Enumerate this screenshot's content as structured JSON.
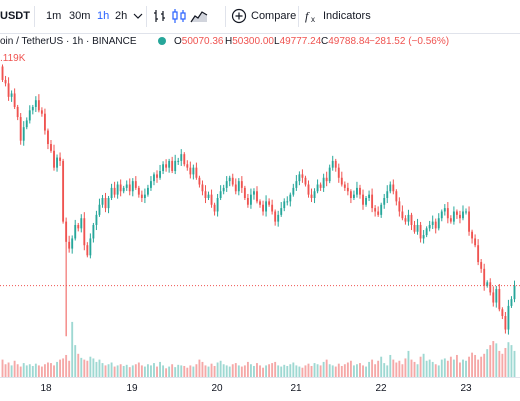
{
  "header": {
    "symbol_fragment": "USDT",
    "intervals": [
      "1m",
      "30m",
      "1h",
      "2h"
    ],
    "active_interval": "1h",
    "compare_label": "Compare",
    "indicators_label": "Indicators"
  },
  "legend": {
    "title": "oin / TetherUS · 1h · BINANCE",
    "open_label": "O",
    "open": "50070.36",
    "high_label": "H",
    "high": "50300.00",
    "low_label": "L",
    "low": "49777.24",
    "close_label": "C",
    "close": "49788.84",
    "change": "−281.52 (−0.56%)",
    "volume_fragment": ".119K"
  },
  "colors": {
    "up": "#26a69a",
    "down": "#ef5350",
    "up_volume": "#9ed8d2",
    "down_volume": "#f5a8a7",
    "accent": "#2962ff",
    "price_line": "#ef5350"
  },
  "icons": [
    "chevron-down-icon",
    "bar-style-icon",
    "candle-style-icon",
    "area-style-icon",
    "plus-circle-icon",
    "fx-icon"
  ],
  "chart_data": {
    "type": "candlestick",
    "x_tick_labels": [
      "18",
      "19",
      "20",
      "21",
      "22",
      "23"
    ],
    "last_price_line": "dotted",
    "ohlc_path": [
      53800,
      53400,
      53300,
      52900,
      53000,
      52600,
      52300,
      51600,
      52000,
      52200,
      52500,
      52600,
      52800,
      52500,
      52400,
      51900,
      51500,
      51300,
      50800,
      51100,
      51000,
      49200,
      48600,
      48400,
      48700,
      49100,
      49000,
      49300,
      48500,
      48200,
      48700,
      49100,
      49400,
      49700,
      49900,
      49600,
      49900,
      50200,
      50000,
      50300,
      50100,
      50200,
      50300,
      50100,
      50400,
      50200,
      50000,
      49900,
      50000,
      50200,
      50400,
      50600,
      50500,
      50700,
      50900,
      50800,
      51000,
      50700,
      51000,
      51000,
      51200,
      50900,
      50800,
      50600,
      50800,
      50500,
      50300,
      50100,
      49900,
      50000,
      49700,
      49500,
      49900,
      50100,
      50200,
      50400,
      50500,
      50300,
      50100,
      50400,
      50200,
      49900,
      49700,
      50000,
      50100,
      49800,
      49700,
      49500,
      49800,
      49700,
      49500,
      49200,
      49400,
      49600,
      49800,
      49800,
      50000,
      50200,
      50400,
      50600,
      50500,
      50300,
      50000,
      49900,
      50100,
      50300,
      50200,
      50500,
      50400,
      50800,
      51000,
      50800,
      50500,
      50300,
      50200,
      50100,
      49900,
      50000,
      50200,
      50000,
      49700,
      49900,
      50000,
      49600,
      49500,
      49400,
      49700,
      49900,
      50100,
      50300,
      50100,
      49800,
      49500,
      49300,
      49200,
      49400,
      49100,
      48900,
      49100,
      48700,
      48800,
      49000,
      49100,
      49200,
      49000,
      49300,
      49500,
      49600,
      49300,
      49200,
      49500,
      49400,
      49300,
      49500,
      49500,
      48900,
      48700,
      48500,
      48000,
      47800,
      47300,
      47400,
      47100,
      46800,
      47200,
      46600,
      46400,
      46000,
      46700,
      46900,
      47300
    ],
    "volume_levels": [
      0.3,
      0.22,
      0.25,
      0.2,
      0.28,
      0.22,
      0.18,
      0.24,
      0.2,
      0.22,
      0.19,
      0.23,
      0.2,
      0.18,
      0.22,
      0.25,
      0.24,
      0.2,
      0.26,
      0.3,
      0.32,
      0.38,
      0.28,
      0.95,
      0.55,
      0.4,
      0.33,
      0.3,
      0.28,
      0.35,
      0.32,
      0.26,
      0.3,
      0.24,
      0.2,
      0.22,
      0.25,
      0.18,
      0.2,
      0.22,
      0.19,
      0.21,
      0.17,
      0.2,
      0.22,
      0.25,
      0.2,
      0.18,
      0.22,
      0.2,
      0.24,
      0.18,
      0.26,
      0.2,
      0.15,
      0.18,
      0.22,
      0.17,
      0.21,
      0.2,
      0.19,
      0.16,
      0.2,
      0.18,
      0.22,
      0.3,
      0.26,
      0.2,
      0.18,
      0.23,
      0.19,
      0.25,
      0.28,
      0.22,
      0.2,
      0.18,
      0.22,
      0.24,
      0.2,
      0.18,
      0.2,
      0.26,
      0.22,
      0.19,
      0.24,
      0.2,
      0.16,
      0.2,
      0.22,
      0.24,
      0.26,
      0.2,
      0.18,
      0.21,
      0.19,
      0.22,
      0.25,
      0.2,
      0.18,
      0.16,
      0.2,
      0.23,
      0.19,
      0.24,
      0.22,
      0.2,
      0.26,
      0.3,
      0.22,
      0.2,
      0.18,
      0.23,
      0.19,
      0.22,
      0.25,
      0.28,
      0.2,
      0.22,
      0.24,
      0.2,
      0.18,
      0.26,
      0.3,
      0.22,
      0.28,
      0.35,
      0.24,
      0.2,
      0.38,
      0.3,
      0.25,
      0.28,
      0.22,
      0.32,
      0.45,
      0.3,
      0.26,
      0.22,
      0.35,
      0.4,
      0.28,
      0.3,
      0.26,
      0.22,
      0.2,
      0.3,
      0.32,
      0.28,
      0.35,
      0.3,
      0.38,
      0.25,
      0.3,
      0.28,
      0.35,
      0.42,
      0.38,
      0.3,
      0.35,
      0.4,
      0.48,
      0.55,
      0.62,
      0.58,
      0.45,
      0.4,
      0.5,
      0.6,
      0.55,
      0.45,
      0.38,
      0.12
    ]
  }
}
